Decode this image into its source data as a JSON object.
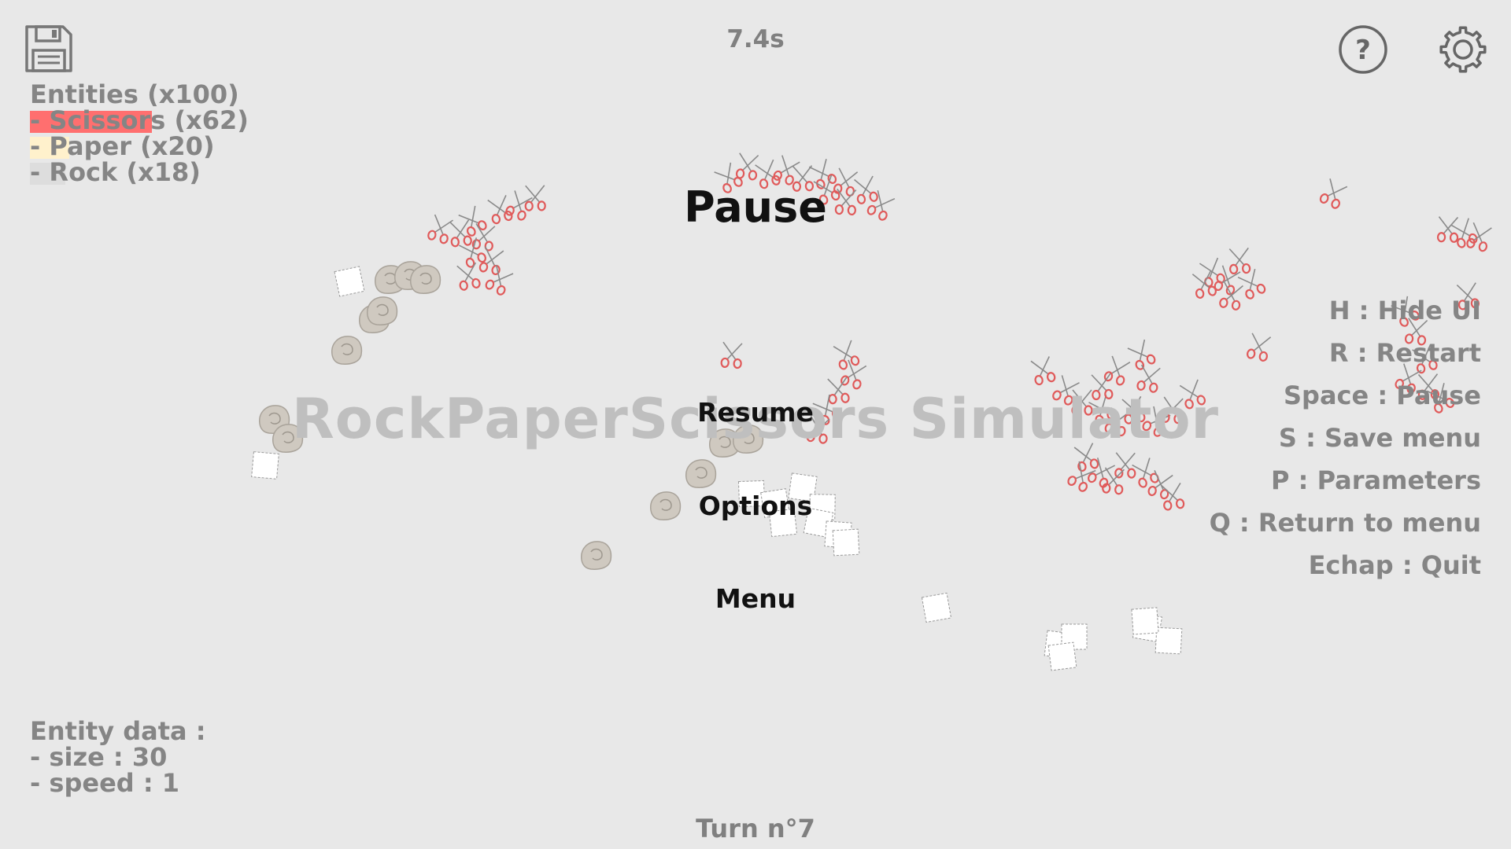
{
  "timer": "7.4s",
  "turn": "Turn n°7",
  "title_watermark": "RockPaperScissors Simulator",
  "entities": {
    "header": "Entities (x100)",
    "items": [
      {
        "label": "- Scissors (x62)",
        "fraction": 0.62,
        "color": "#ff6f6f"
      },
      {
        "label": "- Paper (x20)",
        "fraction": 0.2,
        "color": "#fff1cc"
      },
      {
        "label": "- Rock (x18)",
        "fraction": 0.18,
        "color": "#dddddd"
      }
    ]
  },
  "entity_data": {
    "header": "Entity data :",
    "size": "- size : 30",
    "speed": "- speed : 1"
  },
  "shortcuts": [
    "H : Hide UI",
    "R : Restart",
    "Space : Pause",
    "S : Save menu",
    "P : Parameters",
    "Q : Return to menu",
    "Echap : Quit"
  ],
  "pause_menu": {
    "title": "Pause",
    "resume": "Resume",
    "options": "Options",
    "menu": "Menu"
  },
  "icons": {
    "save": "floppy-disk-icon",
    "help": "question-mark-icon",
    "settings": "gear-icon"
  },
  "colors": {
    "background": "#e8e8e8",
    "scissors": "#e05a5a",
    "paper": "#ffffff",
    "rock": "#cfc9c0",
    "ui_text": "#858585"
  }
}
